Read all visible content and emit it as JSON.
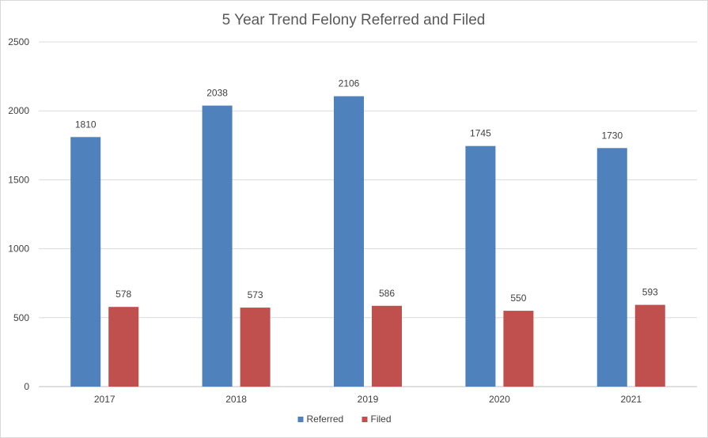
{
  "chart_data": {
    "type": "bar",
    "title": "5 Year Trend Felony Referred and Filed",
    "xlabel": "",
    "ylabel": "",
    "categories": [
      "2017",
      "2018",
      "2019",
      "2020",
      "2021"
    ],
    "series": [
      {
        "name": "Referred",
        "color": "#4f81bd",
        "values": [
          1810,
          2038,
          2106,
          1745,
          1730
        ]
      },
      {
        "name": "Filed",
        "color": "#c0504d",
        "values": [
          578,
          573,
          586,
          550,
          593
        ]
      }
    ],
    "ylim": [
      0,
      2500
    ],
    "yticks": [
      0,
      500,
      1000,
      1500,
      2000,
      2500
    ],
    "grid": true,
    "legend": "bottom",
    "data_labels": true
  }
}
